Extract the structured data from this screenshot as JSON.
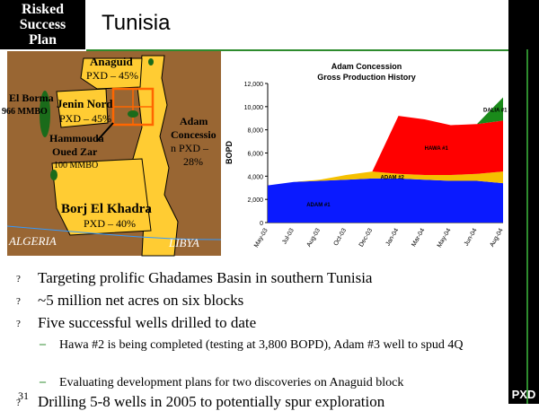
{
  "logo": {
    "lines": [
      "Risked",
      "Success",
      "Plan"
    ]
  },
  "title": "Tunisia",
  "pxd": "PXD",
  "page_number": "31",
  "map": {
    "labels": {
      "anaguid": "Anaguid",
      "anaguid_pxd": "PXD – 45%",
      "el_borma": "El Borma",
      "el_borma_mmbo": "966 MMBO",
      "jenin": "Jenin Nord",
      "jenin_pxd": "PXD – 45%",
      "hammouda": "Hammouda",
      "oued_zar": "Oued Zar",
      "oued_zar_mmbo": "100 MMBO",
      "adam": "Adam",
      "concessio": "Concessio",
      "n_pxd": "n PXD –",
      "adam_pct": "28%",
      "borj": "Borj El Khadra",
      "borj_pxd": "PXD – 40%",
      "algeria": "ALGERIA",
      "libya": "LIBYA"
    }
  },
  "chart_data": {
    "type": "area",
    "title": "Adam Concession",
    "subtitle": "Gross Production History",
    "ylabel": "BOPD",
    "ylim": [
      0,
      12000
    ],
    "yticks": [
      "0",
      "2,000",
      "4,000",
      "6,000",
      "8,000",
      "10,000",
      "12,000"
    ],
    "x_ticks": [
      "May-03",
      "Jul-03",
      "Aug-03",
      "Oct-03",
      "Dec-03",
      "Jan-04",
      "Mar-04",
      "May-04",
      "Jun-04",
      "Aug-04"
    ],
    "x_index": [
      0,
      1,
      2,
      3,
      4,
      5,
      6,
      7,
      8,
      9
    ],
    "series": [
      {
        "name": "ADAM #1",
        "color": "#0a1aff",
        "values": [
          3200,
          3500,
          3600,
          3700,
          3800,
          3800,
          3700,
          3600,
          3600,
          3400
        ]
      },
      {
        "name": "ADAM #2",
        "color": "#f5c000",
        "values": [
          0,
          0,
          100,
          400,
          600,
          400,
          400,
          500,
          600,
          1000
        ]
      },
      {
        "name": "HAWA #1",
        "color": "#ff0000",
        "values": [
          0,
          0,
          0,
          0,
          0,
          5000,
          4800,
          4300,
          4300,
          4400
        ]
      },
      {
        "name": "DALIA #1",
        "color": "#1a8a1a",
        "values": [
          0,
          0,
          0,
          0,
          0,
          0,
          0,
          0,
          0,
          2000
        ]
      }
    ]
  },
  "bullets": [
    {
      "mark": "?",
      "text": "Targeting prolific Ghadames Basin in southern Tunisia"
    },
    {
      "mark": "?",
      "text": "~5 million net acres on six blocks"
    },
    {
      "mark": "?",
      "text": "Five successful wells drilled to date"
    },
    {
      "mark": "?",
      "text": "Drilling 5-8 wells in 2005 to potentially spur exploration"
    }
  ],
  "sub_bullets": [
    {
      "mark": "–",
      "text": "Hawa #2 is being completed (testing at 3,800 BOPD), Adam #3 well to spud 4Q"
    },
    {
      "mark": "–",
      "text": "Evaluating development plans for two discoveries on Anaguid block"
    }
  ]
}
